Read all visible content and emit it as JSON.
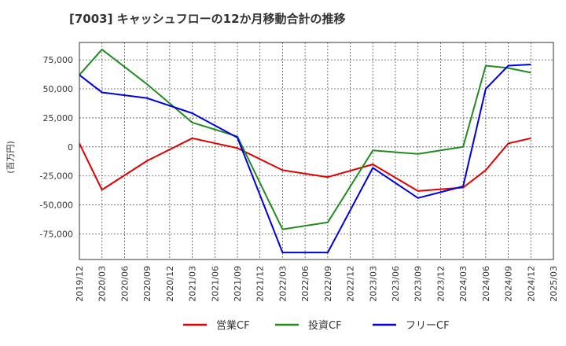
{
  "chart_data": {
    "type": "line",
    "title": "[7003]  キャッシュフローの12か月移動合計の推移",
    "ylabel": "(百万円)",
    "xlabel": "",
    "ylim": [
      -97000,
      90000
    ],
    "x_ticks": [
      "2019/12",
      "2020/03",
      "2020/06",
      "2020/09",
      "2020/12",
      "2021/03",
      "2021/06",
      "2021/09",
      "2021/12",
      "2022/03",
      "2022/06",
      "2022/09",
      "2022/12",
      "2023/03",
      "2023/06",
      "2023/09",
      "2023/12",
      "2024/03",
      "2024/06",
      "2024/09",
      "2024/12",
      "2025/03"
    ],
    "y_ticks": [
      {
        "value": 75000,
        "label": "75,000"
      },
      {
        "value": 50000,
        "label": "50,000"
      },
      {
        "value": 25000,
        "label": "25,000"
      },
      {
        "value": 0,
        "label": "0"
      },
      {
        "value": -25000,
        "label": "-25,000"
      },
      {
        "value": -50000,
        "label": "-50,000"
      },
      {
        "value": -75000,
        "label": "-75,000"
      }
    ],
    "grid": true,
    "legend_position": "bottom",
    "series": [
      {
        "name": "営業CF",
        "color": "#e00000",
        "x": [
          "2019/12",
          "2020/03",
          "2020/09",
          "2021/03",
          "2021/09",
          "2022/03",
          "2022/09",
          "2023/03",
          "2023/09",
          "2024/03",
          "2024/06",
          "2024/09",
          "2024/12"
        ],
        "values": [
          3000,
          -37000,
          -12000,
          7500,
          -1000,
          -20000,
          -26000,
          -15000,
          -38000,
          -35000,
          -20000,
          3000,
          7500
        ]
      },
      {
        "name": "投資CF",
        "color": "#228b22",
        "x": [
          "2019/12",
          "2020/03",
          "2020/09",
          "2021/03",
          "2021/09",
          "2022/03",
          "2022/09",
          "2023/03",
          "2023/09",
          "2024/03",
          "2024/06",
          "2024/09",
          "2024/12"
        ],
        "values": [
          62000,
          84000,
          54000,
          21000,
          9000,
          -71000,
          -65000,
          -3000,
          -6000,
          0,
          70000,
          68000,
          64000
        ]
      },
      {
        "name": "フリーCF",
        "color": "#0000dd",
        "x": [
          "2019/12",
          "2020/03",
          "2020/09",
          "2021/03",
          "2021/09",
          "2022/03",
          "2022/09",
          "2023/03",
          "2023/09",
          "2024/03",
          "2024/06",
          "2024/09",
          "2024/12"
        ],
        "values": [
          62000,
          47000,
          42000,
          29000,
          8000,
          -91000,
          -91000,
          -18000,
          -44000,
          -34000,
          50000,
          70000,
          71000
        ]
      }
    ]
  }
}
